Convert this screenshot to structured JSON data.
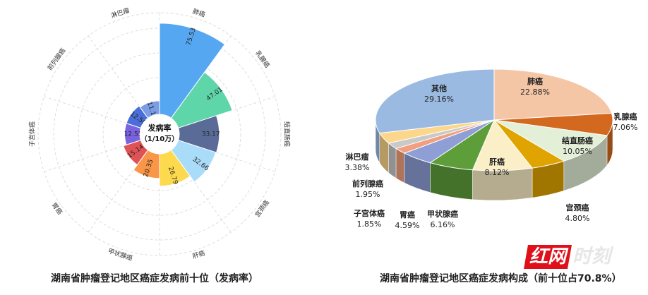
{
  "chart_data": [
    {
      "type": "polar-bar",
      "title": "湖南省肿瘤登记地区癌症发病前十位（发病率）",
      "center_label": "发病率",
      "center_unit": "（1/10万）",
      "categories": [
        "肺癌",
        "乳腺癌",
        "结直肠癌",
        "宫颈癌",
        "肝癌",
        "甲状腺癌",
        "胃癌",
        "子宫体癌",
        "前列腺癌",
        "淋巴瘤"
      ],
      "values": [
        75.53,
        47.01,
        33.17,
        32.66,
        26.79,
        20.35,
        15.14,
        12.55,
        12.5,
        11.15
      ],
      "colors": [
        "#56a7f1",
        "#5ed6a9",
        "#5a6b98",
        "#a9dcf8",
        "#fdd94d",
        "#fa9647",
        "#e05355",
        "#7a63e0",
        "#4a6fd8",
        "#7b9de6"
      ],
      "grid": true
    },
    {
      "type": "pie",
      "style": "3d",
      "title": "湖南省肿瘤登记地区癌症发病构成（前十位占70.8%）",
      "categories": [
        "肺癌",
        "乳腺癌",
        "结直肠癌",
        "宫颈癌",
        "肝癌",
        "甲状腺癌",
        "胃癌",
        "子宫体癌",
        "前列腺癌",
        "淋巴瘤",
        "其他"
      ],
      "values": [
        22.88,
        7.06,
        10.05,
        4.8,
        8.12,
        6.16,
        4.59,
        1.85,
        1.95,
        3.38,
        29.16
      ],
      "labels": [
        "22.88%",
        "7.06%",
        "10.05%",
        "4.80%",
        "8.12%",
        "6.16%",
        "4.59%",
        "1.85%",
        "1.95%",
        "3.38%",
        "29.16%"
      ],
      "colors": [
        "#f5c6a6",
        "#d2691f",
        "#e3efd6",
        "#e0a400",
        "#fbefc8",
        "#5e9e3a",
        "#8f9fd6",
        "#f0a07e",
        "#c9c9c9",
        "#fcd68a",
        "#9bbae2"
      ]
    }
  ],
  "watermark": {
    "red": "红网",
    "grey": "时刻"
  }
}
